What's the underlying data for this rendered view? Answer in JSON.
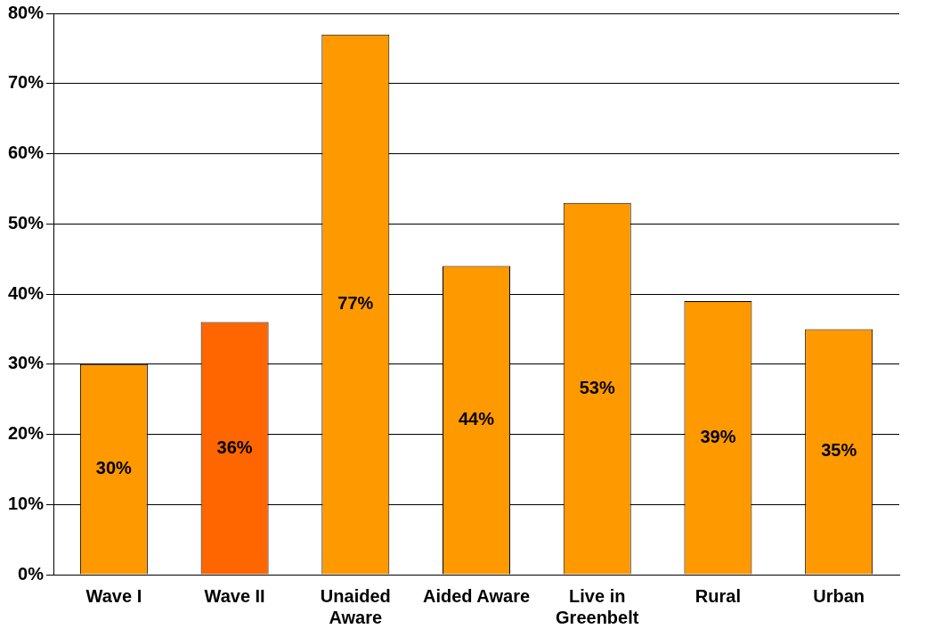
{
  "chart_data": {
    "type": "bar",
    "categories": [
      "Wave I",
      "Wave II",
      "Unaided Aware",
      "Aided Aware",
      "Live in Greenbelt",
      "Rural",
      "Urban"
    ],
    "values": [
      30,
      36,
      77,
      44,
      53,
      39,
      35
    ],
    "colors": [
      "#ff9900",
      "#ff6600",
      "#ff9900",
      "#ff9900",
      "#ff9900",
      "#ff9900",
      "#ff9900"
    ],
    "value_labels": [
      "30%",
      "36%",
      "77%",
      "44%",
      "53%",
      "39%",
      "35%"
    ],
    "ylim": [
      0,
      80
    ],
    "yticks": [
      {
        "value": 0,
        "label": "0%"
      },
      {
        "value": 10,
        "label": "10%"
      },
      {
        "value": 20,
        "label": "20%"
      },
      {
        "value": 30,
        "label": "30%"
      },
      {
        "value": 40,
        "label": "40%"
      },
      {
        "value": 50,
        "label": "50%"
      },
      {
        "value": 60,
        "label": "60%"
      },
      {
        "value": 70,
        "label": "70%"
      },
      {
        "value": 80,
        "label": "80%"
      }
    ],
    "grid": "y",
    "legend": false
  }
}
